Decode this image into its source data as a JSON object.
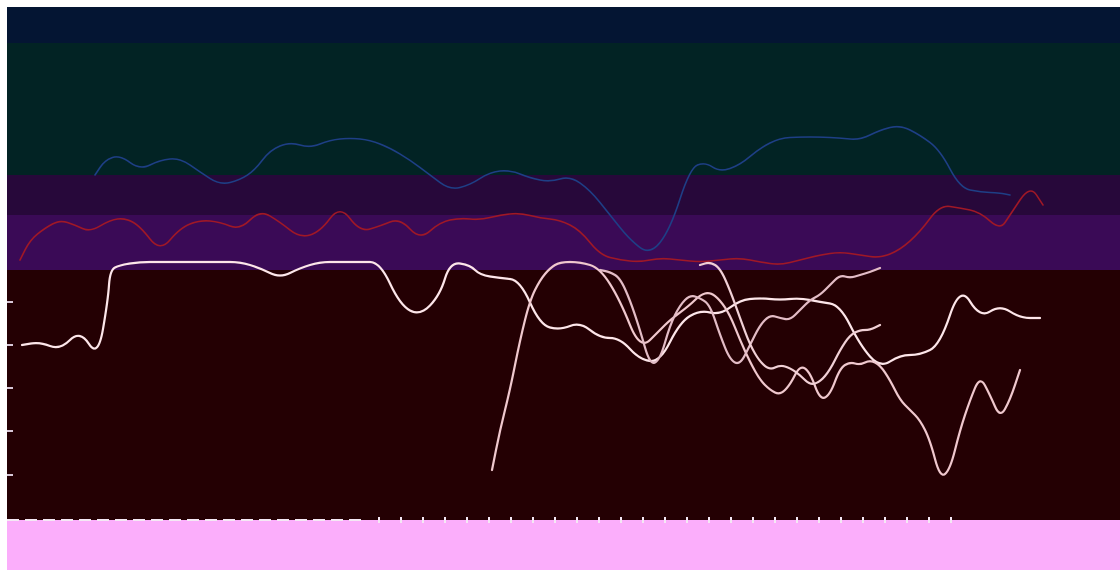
{
  "chart_data": {
    "type": "line",
    "title": "",
    "xlabel": "",
    "ylabel": "",
    "grid": false,
    "legend": "none",
    "bands": [
      {
        "name": "band-navy",
        "color": "#041533"
      },
      {
        "name": "band-teal",
        "color": "#022324"
      },
      {
        "name": "band-purple",
        "color": "#27083a"
      },
      {
        "name": "band-violet",
        "color": "#3a0a56"
      },
      {
        "name": "band-maroon",
        "color": "#240003"
      },
      {
        "name": "band-pink",
        "color": "#fbaefb"
      }
    ],
    "series": [
      {
        "color": "#1e3f86",
        "values": [
          [
            95,
            175
          ],
          [
            105,
            160
          ],
          [
            120,
            155
          ],
          [
            140,
            170
          ],
          [
            160,
            160
          ],
          [
            180,
            158
          ],
          [
            200,
            172
          ],
          [
            220,
            185
          ],
          [
            240,
            180
          ],
          [
            255,
            170
          ],
          [
            270,
            150
          ],
          [
            290,
            142
          ],
          [
            310,
            148
          ],
          [
            330,
            140
          ],
          [
            350,
            138
          ],
          [
            370,
            140
          ],
          [
            390,
            148
          ],
          [
            410,
            160
          ],
          [
            430,
            175
          ],
          [
            450,
            190
          ],
          [
            470,
            185
          ],
          [
            490,
            172
          ],
          [
            510,
            170
          ],
          [
            530,
            178
          ],
          [
            550,
            182
          ],
          [
            570,
            176
          ],
          [
            590,
            190
          ],
          [
            610,
            215
          ],
          [
            630,
            240
          ],
          [
            650,
            255
          ],
          [
            670,
            230
          ],
          [
            690,
            168
          ],
          [
            705,
            162
          ],
          [
            720,
            172
          ],
          [
            740,
            165
          ],
          [
            760,
            148
          ],
          [
            780,
            138
          ],
          [
            800,
            137
          ],
          [
            820,
            137
          ],
          [
            840,
            138
          ],
          [
            860,
            140
          ],
          [
            880,
            130
          ],
          [
            900,
            125
          ],
          [
            920,
            135
          ],
          [
            940,
            150
          ],
          [
            960,
            188
          ],
          [
            980,
            192
          ],
          [
            1000,
            193
          ],
          [
            1010,
            195
          ]
        ]
      },
      {
        "color": "#a01826",
        "values": [
          [
            20,
            260
          ],
          [
            30,
            240
          ],
          [
            45,
            228
          ],
          [
            60,
            220
          ],
          [
            75,
            225
          ],
          [
            90,
            232
          ],
          [
            110,
            220
          ],
          [
            125,
            218
          ],
          [
            140,
            226
          ],
          [
            160,
            252
          ],
          [
            180,
            228
          ],
          [
            200,
            220
          ],
          [
            220,
            222
          ],
          [
            240,
            230
          ],
          [
            260,
            210
          ],
          [
            280,
            222
          ],
          [
            300,
            238
          ],
          [
            320,
            232
          ],
          [
            340,
            205
          ],
          [
            360,
            232
          ],
          [
            380,
            226
          ],
          [
            400,
            218
          ],
          [
            420,
            240
          ],
          [
            440,
            222
          ],
          [
            460,
            218
          ],
          [
            480,
            220
          ],
          [
            500,
            215
          ],
          [
            520,
            213
          ],
          [
            540,
            218
          ],
          [
            560,
            220
          ],
          [
            580,
            230
          ],
          [
            600,
            255
          ],
          [
            620,
            260
          ],
          [
            640,
            262
          ],
          [
            660,
            258
          ],
          [
            680,
            260
          ],
          [
            700,
            262
          ],
          [
            720,
            260
          ],
          [
            740,
            258
          ],
          [
            760,
            262
          ],
          [
            780,
            265
          ],
          [
            800,
            260
          ],
          [
            820,
            255
          ],
          [
            840,
            252
          ],
          [
            860,
            255
          ],
          [
            880,
            258
          ],
          [
            900,
            250
          ],
          [
            920,
            232
          ],
          [
            940,
            205
          ],
          [
            960,
            208
          ],
          [
            980,
            212
          ],
          [
            1000,
            230
          ],
          [
            1010,
            215
          ],
          [
            1030,
            185
          ],
          [
            1043,
            205
          ]
        ]
      },
      {
        "color": "#fde6ea",
        "values": [
          [
            22,
            345
          ],
          [
            40,
            342
          ],
          [
            60,
            350
          ],
          [
            80,
            330
          ],
          [
            98,
            358
          ],
          [
            108,
            300
          ],
          [
            110,
            270
          ],
          [
            120,
            265
          ],
          [
            140,
            262
          ],
          [
            160,
            262
          ],
          [
            180,
            262
          ],
          [
            200,
            262
          ],
          [
            220,
            262
          ],
          [
            240,
            262
          ],
          [
            260,
            268
          ],
          [
            280,
            278
          ],
          [
            300,
            268
          ],
          [
            320,
            262
          ],
          [
            340,
            262
          ],
          [
            360,
            262
          ],
          [
            380,
            262
          ],
          [
            400,
            305
          ],
          [
            420,
            316
          ],
          [
            440,
            295
          ],
          [
            450,
            262
          ],
          [
            470,
            265
          ],
          [
            480,
            275
          ],
          [
            500,
            278
          ],
          [
            520,
            280
          ],
          [
            540,
            325
          ],
          [
            560,
            330
          ],
          [
            580,
            322
          ],
          [
            600,
            338
          ],
          [
            620,
            338
          ],
          [
            640,
            360
          ],
          [
            660,
            362
          ],
          [
            680,
            322
          ],
          [
            700,
            310
          ],
          [
            720,
            315
          ],
          [
            740,
            300
          ],
          [
            760,
            298
          ],
          [
            780,
            300
          ],
          [
            800,
            298
          ],
          [
            820,
            302
          ],
          [
            840,
            305
          ],
          [
            860,
            345
          ],
          [
            880,
            368
          ],
          [
            900,
            355
          ],
          [
            920,
            355
          ],
          [
            940,
            345
          ],
          [
            960,
            285
          ],
          [
            980,
            318
          ],
          [
            1000,
            305
          ],
          [
            1020,
            318
          ],
          [
            1040,
            318
          ]
        ]
      },
      {
        "color": "#f0c8ce",
        "values": [
          [
            492,
            470
          ],
          [
            500,
            430
          ],
          [
            510,
            390
          ],
          [
            520,
            340
          ],
          [
            530,
            300
          ],
          [
            540,
            280
          ],
          [
            550,
            268
          ],
          [
            560,
            262
          ],
          [
            580,
            262
          ],
          [
            600,
            268
          ],
          [
            620,
            300
          ],
          [
            640,
            350
          ],
          [
            660,
            330
          ],
          [
            670,
            320
          ],
          [
            690,
            305
          ],
          [
            700,
            295
          ],
          [
            710,
            292
          ],
          [
            720,
            300
          ],
          [
            730,
            315
          ],
          [
            740,
            340
          ],
          [
            750,
            362
          ],
          [
            760,
            380
          ],
          [
            770,
            390
          ],
          [
            780,
            395
          ],
          [
            790,
            385
          ],
          [
            800,
            365
          ],
          [
            810,
            372
          ],
          [
            820,
            400
          ],
          [
            830,
            395
          ],
          [
            840,
            368
          ],
          [
            850,
            362
          ],
          [
            860,
            365
          ],
          [
            870,
            360
          ],
          [
            880,
            365
          ],
          [
            890,
            380
          ],
          [
            900,
            400
          ],
          [
            910,
            410
          ],
          [
            920,
            420
          ],
          [
            930,
            440
          ],
          [
            940,
            478
          ],
          [
            950,
            470
          ],
          [
            960,
            430
          ],
          [
            970,
            400
          ],
          [
            980,
            376
          ],
          [
            990,
            395
          ],
          [
            1000,
            418
          ],
          [
            1010,
            400
          ],
          [
            1020,
            370
          ]
        ]
      },
      {
        "color": "#e3bcc6",
        "values": [
          [
            600,
            270
          ],
          [
            610,
            272
          ],
          [
            620,
            278
          ],
          [
            630,
            300
          ],
          [
            640,
            330
          ],
          [
            650,
            365
          ],
          [
            660,
            360
          ],
          [
            670,
            325
          ],
          [
            680,
            305
          ],
          [
            690,
            295
          ],
          [
            700,
            298
          ],
          [
            710,
            305
          ],
          [
            720,
            335
          ],
          [
            730,
            360
          ],
          [
            740,
            365
          ],
          [
            750,
            345
          ],
          [
            760,
            325
          ],
          [
            770,
            315
          ],
          [
            780,
            318
          ],
          [
            790,
            320
          ],
          [
            800,
            310
          ],
          [
            810,
            300
          ],
          [
            820,
            295
          ],
          [
            830,
            285
          ],
          [
            840,
            275
          ],
          [
            850,
            278
          ],
          [
            860,
            275
          ],
          [
            870,
            272
          ],
          [
            880,
            268
          ]
        ]
      },
      {
        "color": "#f1d0d6",
        "values": [
          [
            700,
            265
          ],
          [
            710,
            262
          ],
          [
            720,
            268
          ],
          [
            730,
            290
          ],
          [
            740,
            318
          ],
          [
            750,
            345
          ],
          [
            760,
            362
          ],
          [
            770,
            370
          ],
          [
            780,
            365
          ],
          [
            790,
            368
          ],
          [
            800,
            375
          ],
          [
            810,
            385
          ],
          [
            820,
            382
          ],
          [
            830,
            370
          ],
          [
            840,
            350
          ],
          [
            850,
            335
          ],
          [
            860,
            330
          ],
          [
            870,
            330
          ],
          [
            880,
            325
          ]
        ]
      }
    ]
  }
}
